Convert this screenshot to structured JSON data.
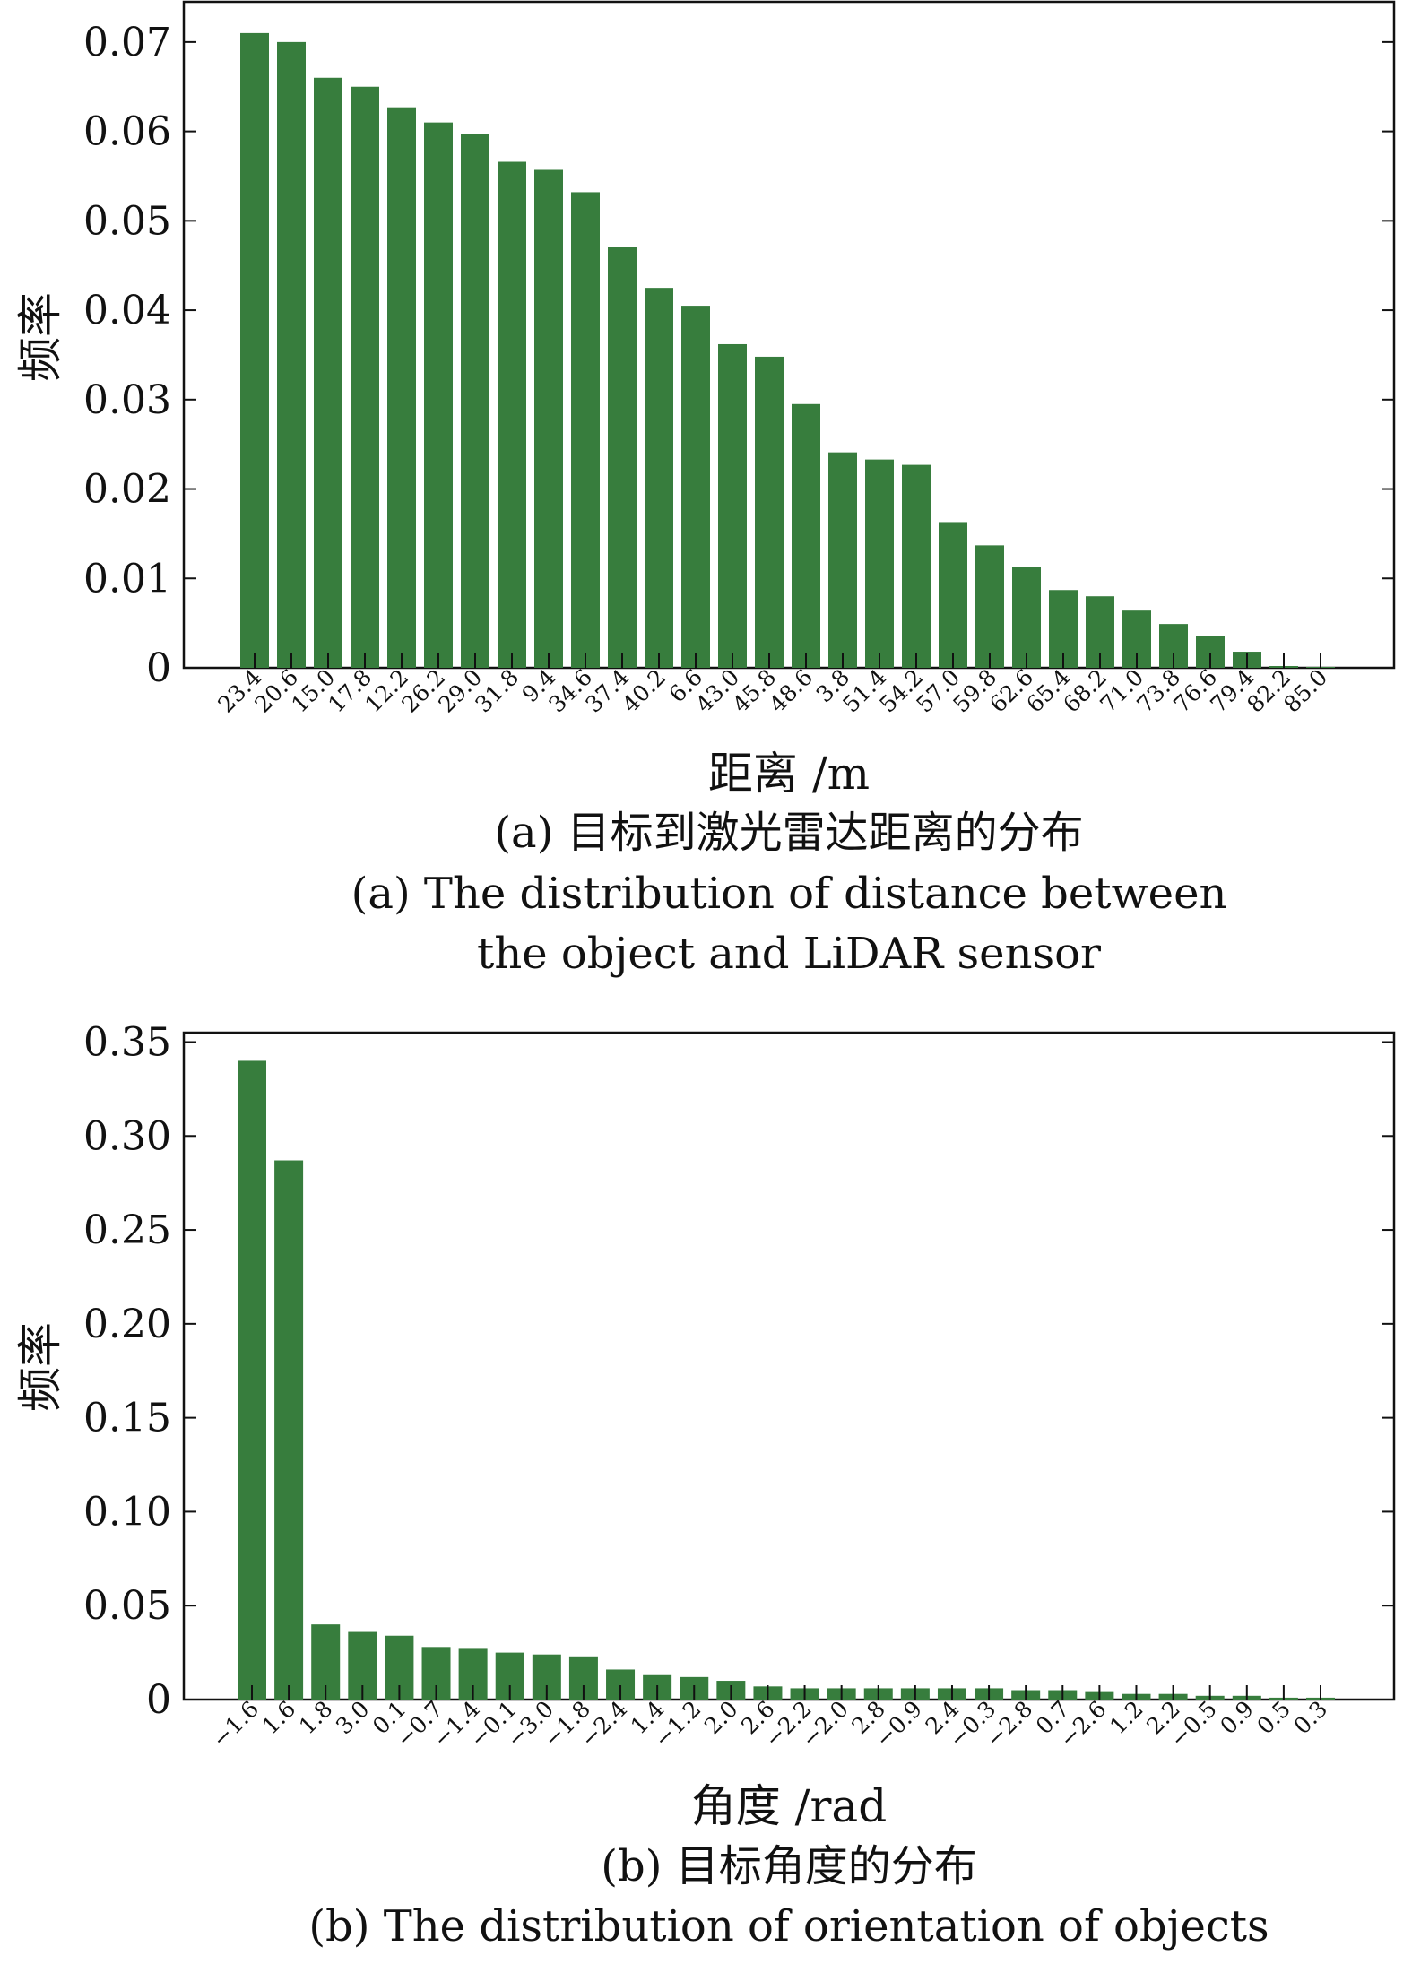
{
  "chart_data": [
    {
      "type": "bar",
      "color": "#377d3d",
      "categories": [
        "23.4",
        "20.6",
        "15.0",
        "17.8",
        "12.2",
        "26.2",
        "29.0",
        "31.8",
        "9.4",
        "34.6",
        "37.4",
        "40.2",
        "6.6",
        "43.0",
        "45.8",
        "48.6",
        "3.8",
        "51.4",
        "54.2",
        "57.0",
        "59.8",
        "62.6",
        "65.4",
        "68.2",
        "71.0",
        "73.8",
        "76.6",
        "79.4",
        "82.2",
        "85.0"
      ],
      "values": [
        0.071,
        0.07,
        0.066,
        0.065,
        0.0627,
        0.061,
        0.0597,
        0.0566,
        0.0557,
        0.0532,
        0.0471,
        0.0425,
        0.0405,
        0.0362,
        0.0348,
        0.0295,
        0.0241,
        0.0233,
        0.0227,
        0.0163,
        0.0137,
        0.0113,
        0.0087,
        0.008,
        0.0064,
        0.0049,
        0.0036,
        0.0018,
        0.0002,
        0.0001
      ],
      "yticks": [
        "0",
        "0.01",
        "0.02",
        "0.03",
        "0.04",
        "0.05",
        "0.06",
        "0.07"
      ],
      "ylim": [
        0,
        0.0745
      ],
      "ylabel": "频率",
      "xlabel": "距离 /m",
      "caption_cn": "(a) 目标到激光雷达距离的分布",
      "caption_en": [
        "(a) The distribution of distance between",
        "the object and LiDAR sensor"
      ]
    },
    {
      "type": "bar",
      "color": "#377d3d",
      "categories": [
        "−1.6",
        "1.6",
        "1.8",
        "3.0",
        "0.1",
        "−0.7",
        "−1.4",
        "−0.1",
        "−3.0",
        "−1.8",
        "−2.4",
        "1.4",
        "−1.2",
        "2.0",
        "2.6",
        "−2.2",
        "−2.0",
        "2.8",
        "−0.9",
        "2.4",
        "−0.3",
        "−2.8",
        "0.7",
        "−2.6",
        "1.2",
        "2.2",
        "−0.5",
        "0.9",
        "0.5",
        "0.3"
      ],
      "values": [
        0.34,
        0.287,
        0.04,
        0.036,
        0.034,
        0.028,
        0.027,
        0.025,
        0.024,
        0.023,
        0.016,
        0.013,
        0.012,
        0.01,
        0.007,
        0.006,
        0.006,
        0.006,
        0.006,
        0.006,
        0.006,
        0.005,
        0.005,
        0.004,
        0.003,
        0.003,
        0.002,
        0.002,
        0.001,
        0.001
      ],
      "yticks": [
        "0",
        "0.05",
        "0.10",
        "0.15",
        "0.20",
        "0.25",
        "0.30",
        "0.35"
      ],
      "ylim": [
        0,
        0.355
      ],
      "ylabel": "频率",
      "xlabel": "角度 /rad",
      "caption_cn": "(b) 目标角度的分布",
      "caption_en": [
        "(b) The distribution of orientation of objects"
      ]
    }
  ]
}
